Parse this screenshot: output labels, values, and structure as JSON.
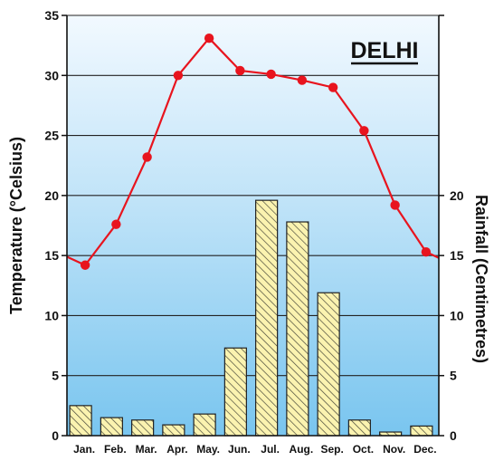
{
  "chart_data": {
    "type": "bar+line",
    "title": "DELHI",
    "categories": [
      "Jan.",
      "Feb.",
      "Mar.",
      "Apr.",
      "May.",
      "Jun.",
      "Jul.",
      "Aug.",
      "Sep.",
      "Oct.",
      "Nov.",
      "Dec."
    ],
    "series": [
      {
        "name": "Temperature",
        "type": "line",
        "axis": "left",
        "values": [
          14.2,
          17.6,
          23.2,
          30.0,
          33.1,
          30.4,
          30.1,
          29.6,
          29.0,
          25.4,
          19.2,
          15.3
        ],
        "color": "#e8141e"
      },
      {
        "name": "Rainfall",
        "type": "bar",
        "axis": "right",
        "values": [
          2.5,
          1.5,
          1.3,
          0.9,
          1.8,
          7.3,
          19.6,
          17.8,
          11.9,
          1.3,
          0.3,
          0.8
        ],
        "fill": "#fbf3b0"
      }
    ],
    "y_left": {
      "label": "Temperature (°Celsius)",
      "range": [
        0,
        35
      ],
      "ticks": [
        "0",
        "5",
        "10",
        "15",
        "20",
        "25",
        "30",
        "35"
      ]
    },
    "y_right": {
      "label": "Rainfall (Centimetres)",
      "range": [
        0,
        35
      ],
      "ticks": [
        "0",
        "5",
        "10",
        "15",
        "20"
      ]
    },
    "grid": true,
    "colors": {
      "background_light": "#f2f9ff",
      "background_dark": "#7cc7f0",
      "line": "#e8141e",
      "bar_fill": "#fbf3b0",
      "bar_hatch": "#4a4a3a"
    }
  }
}
